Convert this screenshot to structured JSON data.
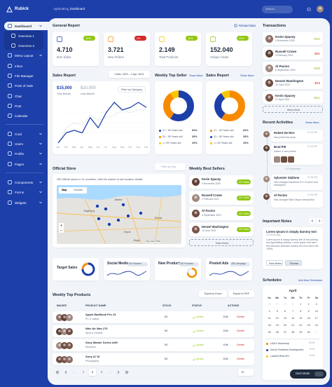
{
  "sidebar": {
    "logo": "Rubick",
    "menu": [
      {
        "label": "Dashboard",
        "active": true,
        "has_children": true
      },
      {
        "label": "Overview 1",
        "sub": true
      },
      {
        "label": "Overview 3",
        "sub": true
      },
      {
        "label": "Menu Layout",
        "has_children": true
      },
      {
        "label": "Inbox"
      },
      {
        "label": "File Manager"
      },
      {
        "label": "Point of Sale"
      },
      {
        "label": "Chat"
      },
      {
        "label": "Post"
      },
      {
        "label": "Calendar"
      },
      {
        "label": "Crud",
        "has_children": true
      },
      {
        "label": "Users",
        "has_children": true
      },
      {
        "label": "Profile",
        "has_children": true
      },
      {
        "label": "Pages",
        "has_children": true
      },
      {
        "label": "Components",
        "has_children": true
      },
      {
        "label": "Forms",
        "has_children": true
      },
      {
        "label": "Widgets",
        "has_children": true
      }
    ]
  },
  "topbar": {
    "breadcrumb": [
      "Application",
      "Dashboard"
    ],
    "search": "Search..."
  },
  "general_report": {
    "title": "General Report",
    "reload": "Reload Data",
    "cards": [
      {
        "value": "4.710",
        "label": "Item Sales",
        "change": "33%",
        "trend": "up",
        "color": "#1c3faa"
      },
      {
        "value": "3.721",
        "label": "New Orders",
        "change": "2%",
        "trend": "down",
        "color": "#f78b00"
      },
      {
        "value": "2.149",
        "label": "Total Products",
        "change": "12%",
        "trend": "up",
        "color": "#fbc500"
      },
      {
        "value": "152.040",
        "label": "Unique Visitor",
        "change": "22%",
        "trend": "up",
        "color": "#91c714"
      }
    ]
  },
  "sales_report": {
    "title": "Sales Report",
    "date_range": "1 Mar, 2021 - 1 Apr, 2021",
    "this_month": {
      "value": "$15,000",
      "label": "This Month"
    },
    "last_month": {
      "value": "$10,000",
      "label": "Last Month"
    },
    "filter": "Filter by Category",
    "chart": {
      "categories": [
        "Jan",
        "Feb",
        "Mar",
        "Apr",
        "May",
        "Jun",
        "Jul",
        "Aug",
        "Sep",
        "Oct",
        "Nov",
        "Dec"
      ],
      "series": [
        {
          "color": "#1c3faa",
          "dashed": false,
          "values": [
            0,
            200,
            250,
            200,
            500,
            300,
            600,
            800,
            650,
            700,
            800,
            700
          ]
        },
        {
          "color": "#cbd5e1",
          "dashed": true,
          "values": [
            0,
            300,
            400,
            350,
            550,
            450,
            500,
            550,
            650,
            600,
            650,
            650
          ]
        }
      ]
    }
  },
  "weekly_top_seller": {
    "title": "Weekly Top Seller",
    "more": "Show More",
    "segments": [
      {
        "label": "17 - 30 Years old",
        "value": 62,
        "value_label": "62%",
        "color": "#1c3faa"
      },
      {
        "label": "31 - 50 Years old",
        "value": 33,
        "value_label": "33%",
        "color": "#f78b00"
      },
      {
        "label": ">= 50 Years old",
        "value": 10,
        "value_label": "10%",
        "color": "#fbc500"
      }
    ]
  },
  "sales_report_2": {
    "title": "Sales Report",
    "more": "Show More",
    "segments": [
      {
        "label": "17 - 30 Years old",
        "value": 62,
        "value_label": "62%",
        "color": "#f78b00"
      },
      {
        "label": "31 - 50 Years old",
        "value": 33,
        "value_label": "33%",
        "color": "#1c3faa"
      },
      {
        "label": ">= 50 Years old",
        "value": 10,
        "value_label": "10%",
        "color": "#fbc500"
      }
    ]
  },
  "transactions": {
    "title": "Transactions",
    "items": [
      {
        "name": "Kevin Spacey",
        "date": "3 November 2020",
        "amount": "+$20",
        "trend": "up"
      },
      {
        "name": "Russell Crowe",
        "date": "3 February 2021",
        "amount": "-$81",
        "trend": "down"
      },
      {
        "name": "Al Pacino",
        "date": "6 September 2022",
        "amount": "+$46",
        "trend": "up"
      },
      {
        "name": "Denzel Washington",
        "date": "10 June 2021",
        "amount": "-$49",
        "trend": "down"
      },
      {
        "name": "Kevin Spacey",
        "date": "27 April 2022",
        "amount": "+$41",
        "trend": "up"
      }
    ],
    "view_more": "View More"
  },
  "recent_activities": {
    "title": "Recent Activities",
    "more": "Show More",
    "items": [
      {
        "name": "Robert De Niro",
        "time": "07:00 PM",
        "text": "Has joined the team"
      },
      {
        "name": "Brad Pitt",
        "time": "07:00 PM",
        "text": "Added 3 new photos"
      }
    ],
    "separator": "12 November",
    "later_items": [
      {
        "name": "Sylvester Stallone",
        "time": "07:00 PM",
        "text": "Has changed MacBook Pro 13 price and description"
      },
      {
        "name": "Al Pacino",
        "time": "07:00 PM",
        "text": "Has changed Nike Tanjun description"
      }
    ]
  },
  "official_store": {
    "title": "Official Store",
    "filter": "Filter by City",
    "text": "250 Official stores in 21 countries, click the marker to see location details.",
    "map": {
      "tabs": [
        "Map",
        "Satellite"
      ],
      "places": [
        "Tangerang",
        "Jakarta",
        "Bekasi",
        "Depok",
        "Bogor"
      ],
      "footer": "Map data ©2021"
    }
  },
  "weekly_best_sellers": {
    "title": "Weekly Best Sellers",
    "items": [
      {
        "name": "Kevin Spacey",
        "date": "3 November 2020",
        "badge": "137 Sales"
      },
      {
        "name": "Russell Crowe",
        "date": "3 February 2021",
        "badge": "137 Sales"
      },
      {
        "name": "Al Pacino",
        "date": "6 September 2022",
        "badge": "137 Sales"
      },
      {
        "name": "Denzel Washington",
        "date": "10 June 2021",
        "badge": "137 Sales"
      }
    ],
    "view_more": "View More"
  },
  "stats": {
    "target_sales": {
      "title": "Target Sales"
    },
    "social_media": {
      "title": "Social Media",
      "badge": "80 Followers"
    },
    "new_products": {
      "title": "New Products",
      "badge": "150 Products"
    },
    "posted_ads": {
      "title": "Posted Ads",
      "badge": "180 Campaign"
    }
  },
  "important_notes": {
    "title": "Important Notes",
    "note_title": "Lorem Ipsum is simply dummy text",
    "date": "20 Hours ago",
    "body": "Lorem Ipsum is simply dummy text of the printing and typesetting industry. Lorem Ipsum has been the industry's standard dummy text ever since the 1500s.",
    "buttons": [
      "View Notes",
      "Dismiss"
    ]
  },
  "schedules": {
    "title": "Schedules",
    "add": "Add New Schedules",
    "month": "April",
    "weekdays": [
      "Su",
      "Mo",
      "Tu",
      "We",
      "Th",
      "Fr",
      "Sa"
    ],
    "days": [
      28,
      29,
      30,
      31,
      1,
      2,
      3,
      4,
      5,
      6,
      7,
      8,
      9,
      10,
      11,
      12,
      13,
      14,
      15,
      16,
      17,
      18,
      19,
      20,
      21,
      22,
      23,
      24,
      25,
      26,
      27,
      28,
      29,
      30,
      1
    ],
    "events": [
      {
        "name": "UI/UX Workshop",
        "time": "23:00",
        "color": "#f78b00"
      },
      {
        "name": "VueJs Frontend Development",
        "time": "10:00",
        "color": "#1c3faa"
      },
      {
        "name": "Laravel Rest API",
        "time": "10:00",
        "color": "#fbc500"
      }
    ]
  },
  "weekly_top_products": {
    "title": "Weekly Top Products",
    "export": [
      "Export to Excel",
      "Export to PDF"
    ],
    "headers": [
      "IMAGES",
      "PRODUCT NAME",
      "STOCK",
      "STATUS",
      "ACTIONS"
    ],
    "rows": [
      {
        "name": "Apple MacBook Pro 13",
        "category": "PC & Laptop",
        "stock": 50,
        "status": "Active"
      },
      {
        "name": "Nike Air Max 270",
        "category": "Sport & Outdoor",
        "stock": 50,
        "status": "Active"
      },
      {
        "name": "Sony Master Series A9G",
        "category": "Electronic",
        "stock": 50,
        "status": "Active"
      },
      {
        "name": "Sony A7 III",
        "category": "Photography",
        "stock": 50,
        "status": "Active"
      }
    ],
    "actions": [
      "Edit",
      "Delete"
    ],
    "pagination": {
      "ellipsis": "...",
      "pages": [
        1,
        2,
        3
      ],
      "current": 2,
      "per_page": "10"
    }
  },
  "dark_mode": "Dark Mode"
}
